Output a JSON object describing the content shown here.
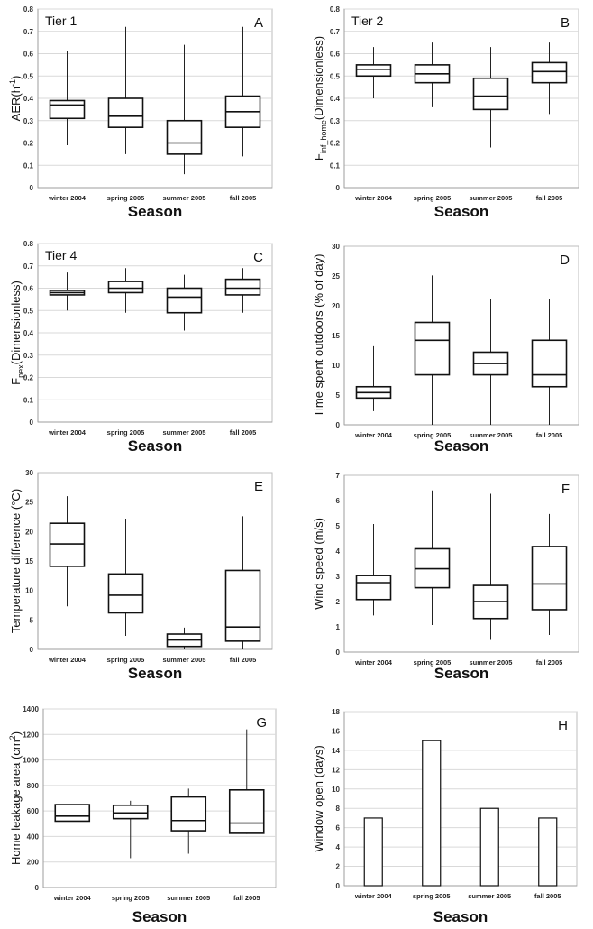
{
  "chart_data": [
    {
      "id": "A",
      "type": "box",
      "letter": "A",
      "tier": "Tier 1",
      "ylabel_main": "AER(h",
      "ylabel_sup": "-1",
      "ylabel_tail": ")",
      "ylabel_sub": "",
      "xlabel": "Season",
      "categories": [
        "winter 2004",
        "spring 2005",
        "summer 2005",
        "fall 2005"
      ],
      "ylim": [
        0,
        0.8
      ],
      "yticks": [
        0,
        0.1,
        0.2,
        0.3,
        0.4,
        0.5,
        0.6,
        0.7,
        0.8
      ],
      "grid": true,
      "boxes": [
        {
          "min": 0.19,
          "q1": 0.31,
          "median": 0.37,
          "q3": 0.39,
          "max": 0.61
        },
        {
          "min": 0.15,
          "q1": 0.27,
          "median": 0.32,
          "q3": 0.4,
          "max": 0.72
        },
        {
          "min": 0.06,
          "q1": 0.15,
          "median": 0.2,
          "q3": 0.3,
          "max": 0.64
        },
        {
          "min": 0.14,
          "q1": 0.27,
          "median": 0.34,
          "q3": 0.41,
          "max": 0.72
        }
      ]
    },
    {
      "id": "B",
      "type": "box",
      "letter": "B",
      "tier": "Tier 2",
      "ylabel_main": "F",
      "ylabel_sub": "inf_home",
      "ylabel_tail": "(Dimensionless)",
      "ylabel_sup": "",
      "xlabel": "Season",
      "categories": [
        "winter 2004",
        "spring 2005",
        "summer 2005",
        "fall 2005"
      ],
      "ylim": [
        0,
        0.8
      ],
      "yticks": [
        0,
        0.1,
        0.2,
        0.3,
        0.4,
        0.5,
        0.6,
        0.7,
        0.8
      ],
      "grid": true,
      "boxes": [
        {
          "min": 0.4,
          "q1": 0.5,
          "median": 0.53,
          "q3": 0.55,
          "max": 0.63
        },
        {
          "min": 0.36,
          "q1": 0.47,
          "median": 0.51,
          "q3": 0.55,
          "max": 0.65
        },
        {
          "min": 0.18,
          "q1": 0.35,
          "median": 0.41,
          "q3": 0.49,
          "max": 0.63
        },
        {
          "min": 0.33,
          "q1": 0.47,
          "median": 0.52,
          "q3": 0.56,
          "max": 0.65
        }
      ]
    },
    {
      "id": "C",
      "type": "box",
      "letter": "C",
      "tier": "Tier 4",
      "ylabel_main": "F",
      "ylabel_sub": "pex",
      "ylabel_tail": "(Dimensionless)",
      "ylabel_sup": "",
      "xlabel": "Season",
      "categories": [
        "winter 2004",
        "spring 2005",
        "summer 2005",
        "fall 2005"
      ],
      "ylim": [
        0,
        0.8
      ],
      "yticks": [
        0,
        0.1,
        0.2,
        0.3,
        0.4,
        0.5,
        0.6,
        0.7,
        0.8
      ],
      "grid": true,
      "boxes": [
        {
          "min": 0.5,
          "q1": 0.57,
          "median": 0.58,
          "q3": 0.59,
          "max": 0.67
        },
        {
          "min": 0.49,
          "q1": 0.58,
          "median": 0.6,
          "q3": 0.63,
          "max": 0.69
        },
        {
          "min": 0.41,
          "q1": 0.49,
          "median": 0.56,
          "q3": 0.6,
          "max": 0.66
        },
        {
          "min": 0.49,
          "q1": 0.57,
          "median": 0.6,
          "q3": 0.64,
          "max": 0.69
        }
      ]
    },
    {
      "id": "D",
      "type": "box",
      "letter": "D",
      "tier": "",
      "ylabel_main": "Time spent outdoors (% of day)",
      "ylabel_sub": "",
      "ylabel_sup": "",
      "ylabel_tail": "",
      "xlabel": "Season",
      "categories": [
        "winter 2004",
        "spring 2005",
        "summer 2005",
        "fall 2005"
      ],
      "ylim": [
        0,
        30
      ],
      "yticks": [
        0,
        5,
        10,
        15,
        20,
        25,
        30
      ],
      "grid": false,
      "boxes": [
        {
          "min": 2.3,
          "q1": 4.5,
          "median": 5.4,
          "q3": 6.4,
          "max": 13.2
        },
        {
          "min": 0,
          "q1": 8.4,
          "median": 14.2,
          "q3": 17.2,
          "max": 25.1
        },
        {
          "min": 0,
          "q1": 8.4,
          "median": 10.3,
          "q3": 12.2,
          "max": 21.1
        },
        {
          "min": 0,
          "q1": 6.4,
          "median": 8.4,
          "q3": 14.2,
          "max": 21.1
        }
      ]
    },
    {
      "id": "E",
      "type": "box",
      "letter": "E",
      "tier": "",
      "ylabel_main": "Temperature difference (°C)",
      "ylabel_sub": "",
      "ylabel_sup": "",
      "ylabel_tail": "",
      "xlabel": "Season",
      "categories": [
        "winter 2004",
        "spring 2005",
        "summer 2005",
        "fall 2005"
      ],
      "ylim": [
        0,
        30
      ],
      "yticks": [
        0,
        5,
        10,
        15,
        20,
        25,
        30
      ],
      "grid": false,
      "boxes": [
        {
          "min": 7.3,
          "q1": 14.1,
          "median": 17.9,
          "q3": 21.4,
          "max": 26.0
        },
        {
          "min": 2.3,
          "q1": 6.2,
          "median": 9.2,
          "q3": 12.8,
          "max": 22.2
        },
        {
          "min": 0,
          "q1": 0.5,
          "median": 1.6,
          "q3": 2.6,
          "max": 3.7
        },
        {
          "min": 0,
          "q1": 1.4,
          "median": 3.8,
          "q3": 13.4,
          "max": 22.6
        }
      ]
    },
    {
      "id": "F",
      "type": "box",
      "letter": "F",
      "tier": "",
      "ylabel_main": "Wind speed (m/s)",
      "ylabel_sub": "",
      "ylabel_sup": "",
      "ylabel_tail": "",
      "xlabel": "Season",
      "categories": [
        "winter 2004",
        "spring 2005",
        "summer 2005",
        "fall 2005"
      ],
      "ylim": [
        0,
        7
      ],
      "yticks": [
        0,
        1,
        2,
        3,
        4,
        5,
        6,
        7
      ],
      "grid": false,
      "boxes": [
        {
          "min": 1.45,
          "q1": 2.08,
          "median": 2.75,
          "q3": 3.03,
          "max": 5.07
        },
        {
          "min": 1.07,
          "q1": 2.55,
          "median": 3.3,
          "q3": 4.09,
          "max": 6.4
        },
        {
          "min": 0.48,
          "q1": 1.33,
          "median": 2.0,
          "q3": 2.64,
          "max": 6.27
        },
        {
          "min": 0.68,
          "q1": 1.68,
          "median": 2.7,
          "q3": 4.18,
          "max": 5.47
        }
      ]
    },
    {
      "id": "G",
      "type": "box",
      "letter": "G",
      "tier": "",
      "ylabel_main": "Home leakage area (cm",
      "ylabel_sup": "2",
      "ylabel_tail": ")",
      "ylabel_sub": "",
      "xlabel": "Season",
      "categories": [
        "winter 2004",
        "spring 2005",
        "summer 2005",
        "fall 2005"
      ],
      "ylim": [
        0,
        1400
      ],
      "yticks": [
        0,
        200,
        400,
        600,
        800,
        1000,
        1200,
        1400
      ],
      "grid": true,
      "boxes": [
        {
          "min": 520,
          "q1": 520,
          "median": 560,
          "q3": 650,
          "max": 650
        },
        {
          "min": 230,
          "q1": 540,
          "median": 585,
          "q3": 645,
          "max": 680
        },
        {
          "min": 265,
          "q1": 445,
          "median": 525,
          "q3": 710,
          "max": 775
        },
        {
          "min": 420,
          "q1": 425,
          "median": 505,
          "q3": 765,
          "max": 1240
        }
      ]
    },
    {
      "id": "H",
      "type": "bar",
      "letter": "H",
      "tier": "",
      "ylabel_main": "Window open (days)",
      "ylabel_sub": "",
      "ylabel_sup": "",
      "ylabel_tail": "",
      "xlabel": "Season",
      "categories": [
        "winter 2004",
        "spring 2005",
        "summer 2005",
        "fall 2005"
      ],
      "ylim": [
        0,
        18
      ],
      "yticks": [
        0,
        2,
        4,
        6,
        8,
        10,
        12,
        14,
        16,
        18
      ],
      "grid": true,
      "values": [
        7,
        15,
        8,
        7
      ]
    }
  ]
}
